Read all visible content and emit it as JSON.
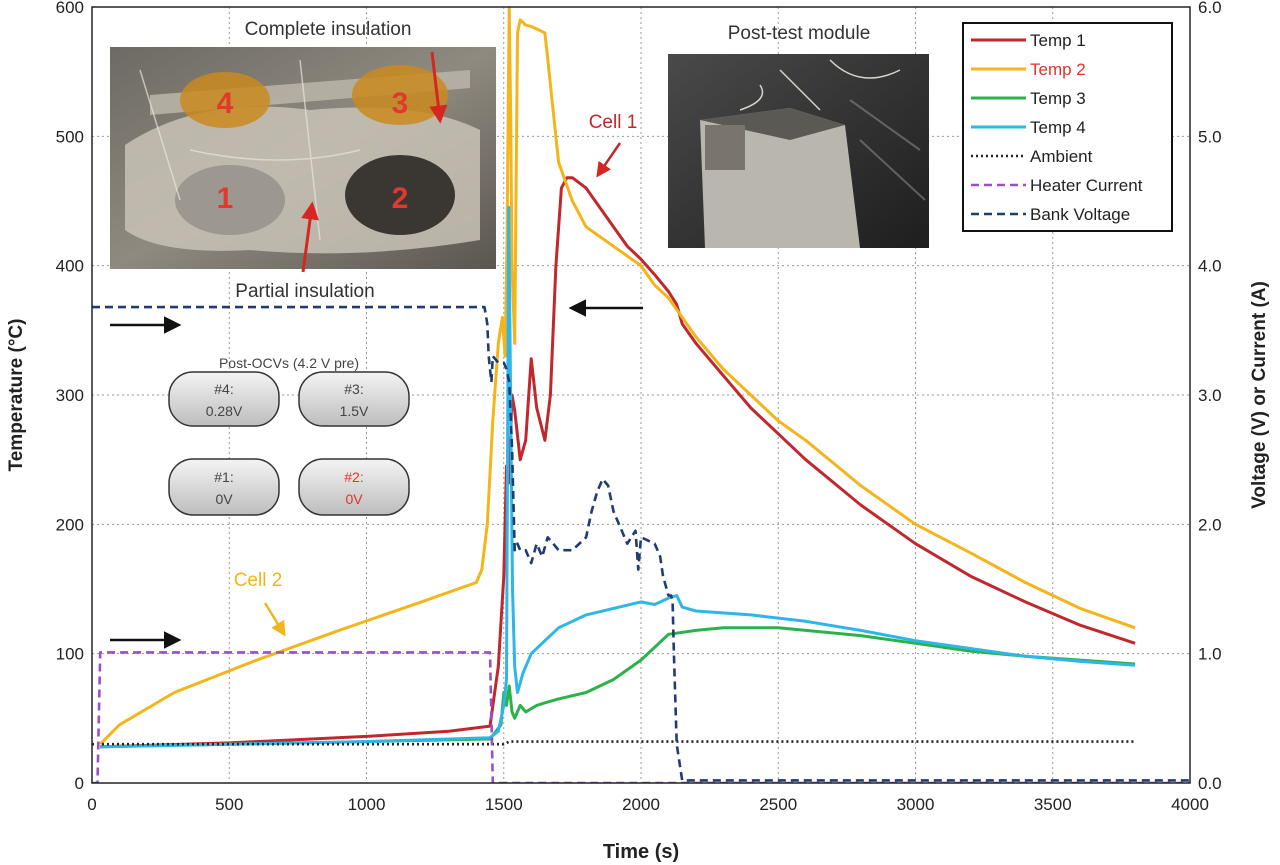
{
  "chart_data": {
    "type": "line",
    "xlabel": "Time (s)",
    "ylabel": "Temperature (°C)",
    "y2label": "Voltage (V) or Current (A)",
    "xlim": [
      0,
      4000
    ],
    "ylim": [
      0,
      600
    ],
    "y2lim": [
      0,
      6
    ],
    "xticks": [
      "0",
      "500",
      "1000",
      "1500",
      "2000",
      "2500",
      "3000",
      "3500",
      "4000"
    ],
    "yticks": [
      "0",
      "100",
      "200",
      "300",
      "400",
      "500",
      "600"
    ],
    "y2ticks": [
      "0.0",
      "1.0",
      "2.0",
      "3.0",
      "4.0",
      "5.0",
      "6.0"
    ],
    "grid": true,
    "legend_position": "top-right",
    "series": [
      {
        "name": "Temp 1",
        "color": "#c0282d",
        "dash": "solid",
        "axis": "left",
        "x": [
          30,
          500,
          1000,
          1300,
          1450,
          1480,
          1500,
          1510,
          1520,
          1530,
          1540,
          1560,
          1580,
          1600,
          1620,
          1650,
          1670,
          1690,
          1710,
          1730,
          1750,
          1800,
          1850,
          1900,
          1950,
          2000,
          2050,
          2100,
          2130,
          2150,
          2200,
          2300,
          2400,
          2500,
          2600,
          2800,
          3000,
          3200,
          3400,
          3600,
          3800
        ],
        "y": [
          28,
          31,
          36,
          40,
          44,
          90,
          160,
          245,
          232,
          300,
          288,
          250,
          265,
          328,
          290,
          265,
          300,
          400,
          460,
          468,
          468,
          460,
          445,
          430,
          415,
          405,
          393,
          380,
          370,
          355,
          340,
          315,
          290,
          270,
          250,
          215,
          185,
          160,
          140,
          122,
          108
        ]
      },
      {
        "name": "Temp 2",
        "color": "#f3b51b",
        "dash": "solid",
        "axis": "left",
        "x": [
          30,
          100,
          300,
          600,
          900,
          1200,
          1400,
          1420,
          1440,
          1460,
          1480,
          1495,
          1505,
          1512,
          1520,
          1525,
          1530,
          1540,
          1550,
          1560,
          1570,
          1580,
          1600,
          1620,
          1650,
          1660,
          1670,
          1700,
          1750,
          1800,
          1900,
          2000,
          2050,
          2100,
          2150,
          2200,
          2300,
          2400,
          2500,
          2600,
          2800,
          3000,
          3200,
          3400,
          3600,
          3800
        ],
        "y": [
          30,
          45,
          70,
          95,
          118,
          140,
          155,
          165,
          200,
          280,
          340,
          360,
          330,
          420,
          600,
          520,
          400,
          340,
          580,
          590,
          588,
          586,
          585,
          583,
          580,
          560,
          540,
          480,
          450,
          430,
          415,
          400,
          385,
          375,
          360,
          345,
          320,
          300,
          280,
          265,
          230,
          200,
          178,
          155,
          135,
          120
        ]
      },
      {
        "name": "Temp 3",
        "color": "#2bb34a",
        "dash": "solid",
        "axis": "left",
        "x": [
          30,
          500,
          1000,
          1450,
          1490,
          1500,
          1510,
          1520,
          1530,
          1540,
          1560,
          1580,
          1620,
          1650,
          1700,
          1800,
          1900,
          2000,
          2100,
          2200,
          2300,
          2400,
          2500,
          2600,
          2800,
          3000,
          3200,
          3400,
          3600,
          3800
        ],
        "y": [
          28,
          30,
          32,
          34,
          45,
          70,
          60,
          75,
          55,
          50,
          60,
          55,
          60,
          62,
          65,
          70,
          80,
          95,
          115,
          118,
          120,
          120,
          120,
          118,
          114,
          108,
          102,
          98,
          95,
          92
        ]
      },
      {
        "name": "Temp 4",
        "color": "#2eb6e8",
        "dash": "solid",
        "axis": "left",
        "x": [
          30,
          500,
          1000,
          1450,
          1480,
          1500,
          1510,
          1518,
          1525,
          1532,
          1540,
          1550,
          1570,
          1600,
          1650,
          1700,
          1800,
          1900,
          2000,
          2050,
          2100,
          2130,
          2150,
          2200,
          2400,
          2600,
          2800,
          3000,
          3200,
          3400,
          3600,
          3800
        ],
        "y": [
          28,
          30,
          32,
          35,
          40,
          60,
          80,
          445,
          300,
          150,
          90,
          70,
          85,
          100,
          110,
          120,
          130,
          135,
          140,
          138,
          143,
          145,
          136,
          133,
          130,
          125,
          118,
          110,
          104,
          98,
          94,
          91
        ]
      },
      {
        "name": "Ambient",
        "color": "#222222",
        "dash": "dot",
        "axis": "left",
        "x": [
          0,
          1500,
          1520,
          3800
        ],
        "y": [
          30,
          30,
          32,
          32
        ]
      },
      {
        "name": "Heater Current",
        "color": "#9b4fc6",
        "dash": "dash",
        "axis": "right",
        "x": [
          0,
          20,
          30,
          1450,
          1460,
          1470,
          4000
        ],
        "y": [
          0,
          0,
          1.01,
          1.01,
          0,
          0,
          0
        ]
      },
      {
        "name": "Bank Voltage",
        "color": "#1f3c73",
        "dash": "dash",
        "axis": "right",
        "x": [
          0,
          1430,
          1440,
          1445,
          1450,
          1455,
          1460,
          1480,
          1500,
          1510,
          1520,
          1530,
          1540,
          1550,
          1560,
          1580,
          1600,
          1620,
          1640,
          1660,
          1680,
          1700,
          1750,
          1800,
          1820,
          1840,
          1860,
          1880,
          1900,
          1920,
          1950,
          1980,
          1990,
          2000,
          2050,
          2060,
          2070,
          2080,
          2100,
          2110,
          2115,
          2120,
          2130,
          2150,
          4000
        ],
        "y": [
          3.68,
          3.68,
          3.55,
          3.3,
          3.2,
          3.1,
          3.3,
          3.25,
          3.25,
          3.2,
          3.1,
          2.6,
          1.8,
          1.85,
          1.8,
          1.8,
          1.7,
          1.85,
          1.75,
          1.9,
          1.85,
          1.8,
          1.8,
          1.9,
          2.1,
          2.25,
          2.35,
          2.3,
          2.1,
          2.0,
          1.85,
          1.95,
          1.65,
          1.9,
          1.85,
          1.8,
          1.75,
          1.6,
          1.45,
          1.45,
          1.4,
          1.0,
          0.3,
          0.02,
          0.02
        ]
      }
    ],
    "annotations": [
      {
        "text": "Complete insulation",
        "color": "#333333"
      },
      {
        "text": "Partial insulation",
        "color": "#333333"
      },
      {
        "text": "Post-test module",
        "color": "#333333"
      },
      {
        "text": "Cell 1",
        "color": "#c0282d"
      },
      {
        "text": "Cell 2",
        "color": "#f3b51b"
      },
      {
        "text": "Post-OCVs (4.2 V pre)",
        "color": "#444444"
      }
    ],
    "photo_labels": [
      "4",
      "3",
      "1",
      "2"
    ],
    "ocv_badges": [
      {
        "label": "#4:",
        "value": "0.28V",
        "color": "#444444"
      },
      {
        "label": "#3:",
        "value": "1.5V",
        "color": "#444444"
      },
      {
        "label": "#1:",
        "value": "0V",
        "color": "#444444"
      },
      {
        "label": "#2:",
        "value": "0V",
        "color": "#e2322d"
      }
    ],
    "legend_label_colors": [
      "#222222",
      "#e2322d",
      "#222222",
      "#222222",
      "#222222",
      "#222222",
      "#222222"
    ]
  }
}
